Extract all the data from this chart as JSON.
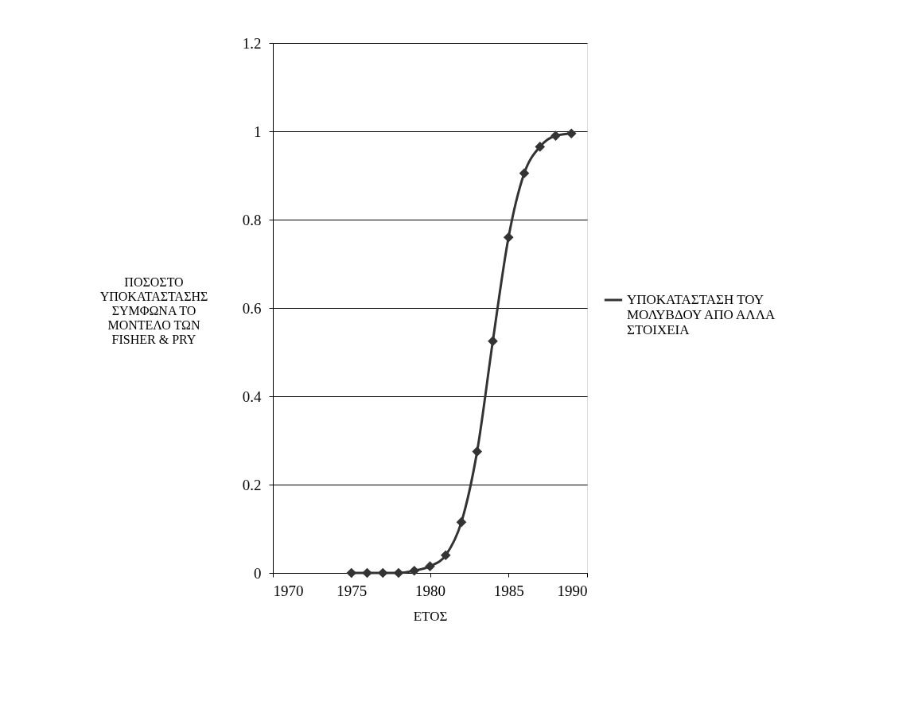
{
  "chart_data": {
    "type": "line",
    "xlabel": "ΕΤΟΣ",
    "ylabel": "ΠΟΣΟΣΤΟ ΥΠΟΚΑΤΑΣΤΑΣΗΣ ΣΥΜΦΩΝΑ ΤΟ ΜΟΝΤΕΛΟ ΤΩΝ FISHER & PRY",
    "x": [
      1975,
      1976,
      1977,
      1978,
      1979,
      1980,
      1981,
      1982,
      1983,
      1984,
      1985,
      1986,
      1987,
      1988,
      1989
    ],
    "series": [
      {
        "name": "ΥΠΟΚΑΤΑΣΤΑΣΗ ΤΟΥ ΜΟΛΥΒΔΟΥ ΑΠΟ ΑΛΛΑ ΣΤΟΙΧΕΙΑ",
        "color": "#333333",
        "values": [
          0,
          0,
          0,
          0,
          0.005,
          0.015,
          0.04,
          0.115,
          0.275,
          0.525,
          0.76,
          0.905,
          0.965,
          0.99,
          0.995
        ]
      }
    ],
    "xlim": [
      1970,
      1990
    ],
    "xticks": [
      1970,
      1975,
      1980,
      1985,
      1990
    ],
    "ylim": [
      0,
      1.2
    ],
    "yticks": [
      0,
      0.2,
      0.4,
      0.6,
      0.8,
      1,
      1.2
    ],
    "grid": "y",
    "legend": "right",
    "marker": "diamond",
    "line_style": "solid"
  }
}
